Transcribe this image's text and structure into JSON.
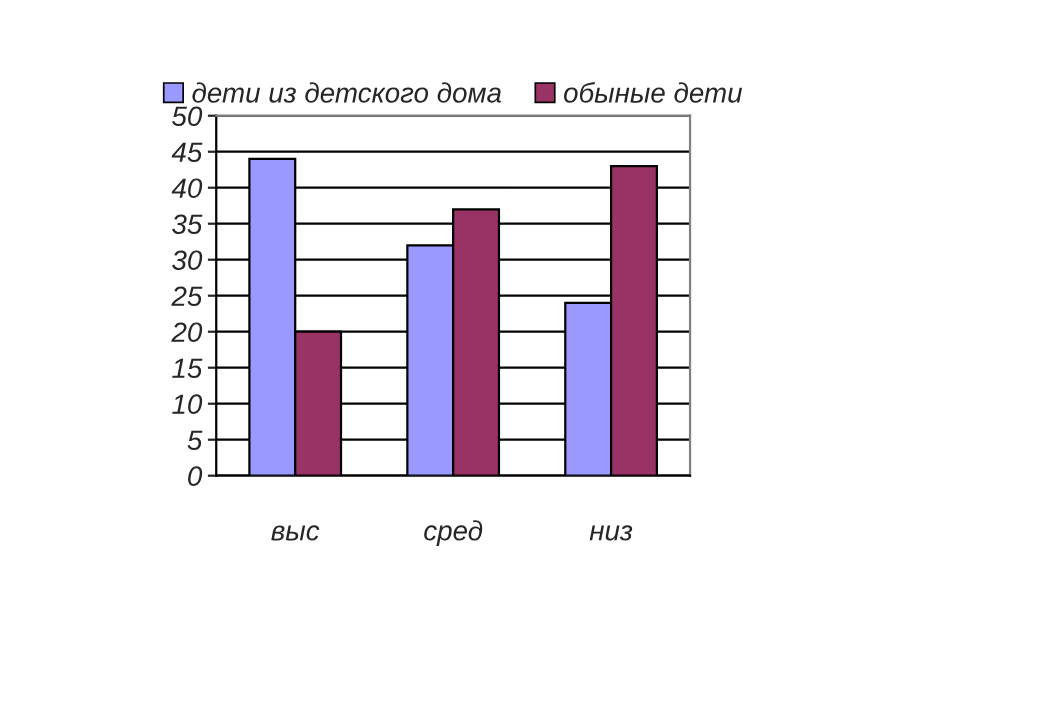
{
  "chart_data": {
    "type": "bar",
    "categories": [
      "выс",
      "сред",
      "низ"
    ],
    "series": [
      {
        "name": "дети из детского дома",
        "color": "#9999ff",
        "values": [
          44,
          32,
          24
        ]
      },
      {
        "name": "обыные дети",
        "color": "#993366",
        "values": [
          20,
          37,
          43
        ]
      }
    ],
    "ylim": [
      0,
      50
    ],
    "yticks": [
      0,
      5,
      10,
      15,
      20,
      25,
      30,
      35,
      40,
      45,
      50
    ],
    "grid": "y",
    "legend": "top"
  }
}
